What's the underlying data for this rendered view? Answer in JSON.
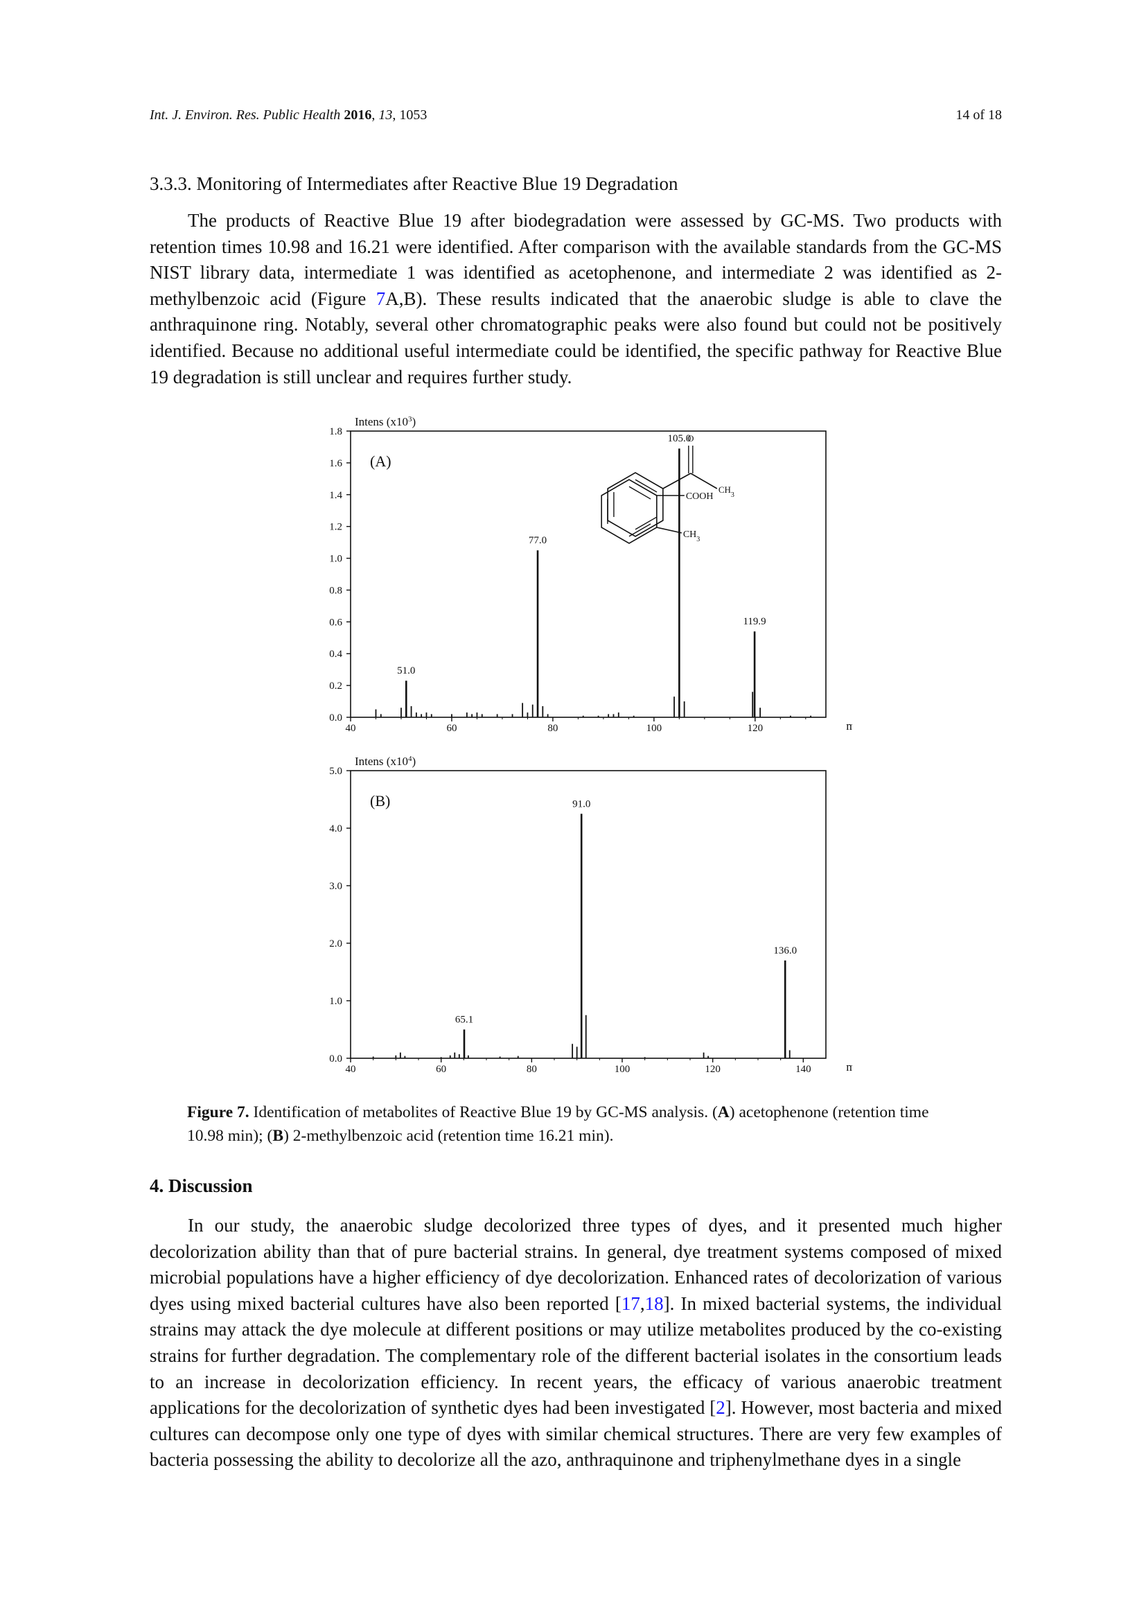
{
  "header": {
    "journal": "Int. J. Environ. Res. Public Health",
    "year": "2016",
    "volume": "13",
    "article": "1053",
    "page": "14 of 18"
  },
  "section_333": {
    "title": "3.3.3. Monitoring of Intermediates after Reactive Blue 19 Degradation",
    "p1_a": "The products of Reactive Blue 19 after biodegradation were assessed by GC-MS. Two products with retention times 10.98 and 16.21 were identified. After comparison with the available standards from the GC-MS NIST library data, intermediate 1 was identified as acetophenone, and intermediate 2 was identified as 2-methylbenzoic acid (Figure ",
    "p1_ref": "7",
    "p1_b": "A,B). These results indicated that the anaerobic sludge is able to clave the anthraquinone ring. Notably, several other chromatographic peaks were also found but could not be positively identified. Because no additional useful intermediate could be identified, the specific pathway for Reactive Blue 19 degradation is still unclear and requires further study."
  },
  "figure": {
    "caption_label": "Figure 7.",
    "caption_a": " Identification of metabolites of Reactive Blue 19 by GC-MS analysis. (",
    "caption_A": "A",
    "caption_b": ") acetophenone (retention time 10.98 min); (",
    "caption_B": "B",
    "caption_c": ") 2-methylbenzoic acid (retention time 16.21 min)."
  },
  "discussion": {
    "heading": "4. Discussion",
    "p_a": "In our study, the anaerobic sludge decolorized three types of dyes, and it presented much higher decolorization ability than that of pure bacterial strains. In general, dye treatment systems composed of mixed microbial populations have a higher efficiency of dye decolorization. Enhanced rates of decolorization of various dyes using mixed bacterial cultures have also been reported [",
    "ref1": "17",
    "comma": ",",
    "ref2": "18",
    "p_b": "]. In mixed bacterial systems, the individual strains may attack the dye molecule at different positions or may utilize metabolites produced by the co-existing strains for further degradation. The complementary role of the different bacterial isolates in the consortium leads to an increase in decolorization efficiency. In recent years, the efficacy of various anaerobic treatment applications for the decolorization of synthetic dyes had been investigated [",
    "ref3": "2",
    "p_c": "]. However, most bacteria and mixed cultures can decompose only one type of dyes with similar chemical structures. There are very few examples of bacteria possessing the ability to decolorize all the azo, anthraquinone and triphenylmethane dyes in a single"
  },
  "chart_data": [
    {
      "type": "bar",
      "panel_label": "(A)",
      "ylabel": "Intens (x10",
      "ylabel_exp": "3",
      "ylabel_close": ")",
      "xlabel": "m/z",
      "xlim": [
        40,
        134
      ],
      "ylim": [
        0,
        1.8
      ],
      "xticks": [
        40,
        60,
        80,
        100,
        120
      ],
      "yticks": [
        "0.0",
        "0.2",
        "0.4",
        "0.6",
        "0.8",
        "1.0",
        "1.2",
        "1.4",
        "1.6",
        "1.8"
      ],
      "structure": "acetophenone",
      "structure_labels": {
        "o": "O",
        "ch3": "CH3"
      },
      "peaks": [
        {
          "mz": 45,
          "i": 0.05
        },
        {
          "mz": 46,
          "i": 0.02
        },
        {
          "mz": 50,
          "i": 0.06
        },
        {
          "mz": 51,
          "i": 0.23,
          "label": "51.0"
        },
        {
          "mz": 52,
          "i": 0.07
        },
        {
          "mz": 53,
          "i": 0.03
        },
        {
          "mz": 54,
          "i": 0.02
        },
        {
          "mz": 55,
          "i": 0.03
        },
        {
          "mz": 56,
          "i": 0.02
        },
        {
          "mz": 60,
          "i": 0.02
        },
        {
          "mz": 63,
          "i": 0.03
        },
        {
          "mz": 64,
          "i": 0.02
        },
        {
          "mz": 65,
          "i": 0.03
        },
        {
          "mz": 66,
          "i": 0.02
        },
        {
          "mz": 69,
          "i": 0.02
        },
        {
          "mz": 72,
          "i": 0.02
        },
        {
          "mz": 74,
          "i": 0.09
        },
        {
          "mz": 75,
          "i": 0.03
        },
        {
          "mz": 76,
          "i": 0.08
        },
        {
          "mz": 77,
          "i": 1.05,
          "label": "77.0"
        },
        {
          "mz": 78,
          "i": 0.07
        },
        {
          "mz": 79,
          "i": 0.02
        },
        {
          "mz": 86,
          "i": 0.01
        },
        {
          "mz": 89,
          "i": 0.01
        },
        {
          "mz": 91,
          "i": 0.02
        },
        {
          "mz": 92,
          "i": 0.02
        },
        {
          "mz": 93,
          "i": 0.03
        },
        {
          "mz": 96,
          "i": 0.01
        },
        {
          "mz": 104,
          "i": 0.13
        },
        {
          "mz": 105,
          "i": 1.69,
          "label": "105.0"
        },
        {
          "mz": 106,
          "i": 0.1
        },
        {
          "mz": 119.5,
          "i": 0.16
        },
        {
          "mz": 119.9,
          "i": 0.54,
          "label": "119.9"
        },
        {
          "mz": 121,
          "i": 0.06
        },
        {
          "mz": 127,
          "i": 0.01
        },
        {
          "mz": 131,
          "i": 0.01
        }
      ]
    },
    {
      "type": "bar",
      "panel_label": "(B)",
      "ylabel": "Intens (x10",
      "ylabel_exp": "4",
      "ylabel_close": ")",
      "xlabel": "m/z",
      "xlim": [
        40,
        145
      ],
      "ylim": [
        0,
        5.0
      ],
      "xticks": [
        40,
        60,
        80,
        100,
        120,
        140
      ],
      "yticks": [
        "0.0",
        "1.0",
        "2.0",
        "3.0",
        "4.0",
        "5.0"
      ],
      "structure": "2-methylbenzoic acid",
      "structure_labels": {
        "cooh": "COOH",
        "ch3": "CH3"
      },
      "peaks": [
        {
          "mz": 45,
          "i": 0.03
        },
        {
          "mz": 50,
          "i": 0.05
        },
        {
          "mz": 51,
          "i": 0.1
        },
        {
          "mz": 52,
          "i": 0.04
        },
        {
          "mz": 60,
          "i": 0.02
        },
        {
          "mz": 62,
          "i": 0.05
        },
        {
          "mz": 63,
          "i": 0.1
        },
        {
          "mz": 64,
          "i": 0.07
        },
        {
          "mz": 65.1,
          "i": 0.5,
          "label": "65.1"
        },
        {
          "mz": 66,
          "i": 0.05
        },
        {
          "mz": 73,
          "i": 0.03
        },
        {
          "mz": 77,
          "i": 0.04
        },
        {
          "mz": 89,
          "i": 0.25
        },
        {
          "mz": 90,
          "i": 0.2
        },
        {
          "mz": 91,
          "i": 4.25,
          "label": "91.0"
        },
        {
          "mz": 92,
          "i": 0.75
        },
        {
          "mz": 105,
          "i": 0.02
        },
        {
          "mz": 118,
          "i": 0.1
        },
        {
          "mz": 119,
          "i": 0.04
        },
        {
          "mz": 136,
          "i": 1.7,
          "label": "136.0"
        },
        {
          "mz": 137,
          "i": 0.14
        }
      ]
    }
  ]
}
